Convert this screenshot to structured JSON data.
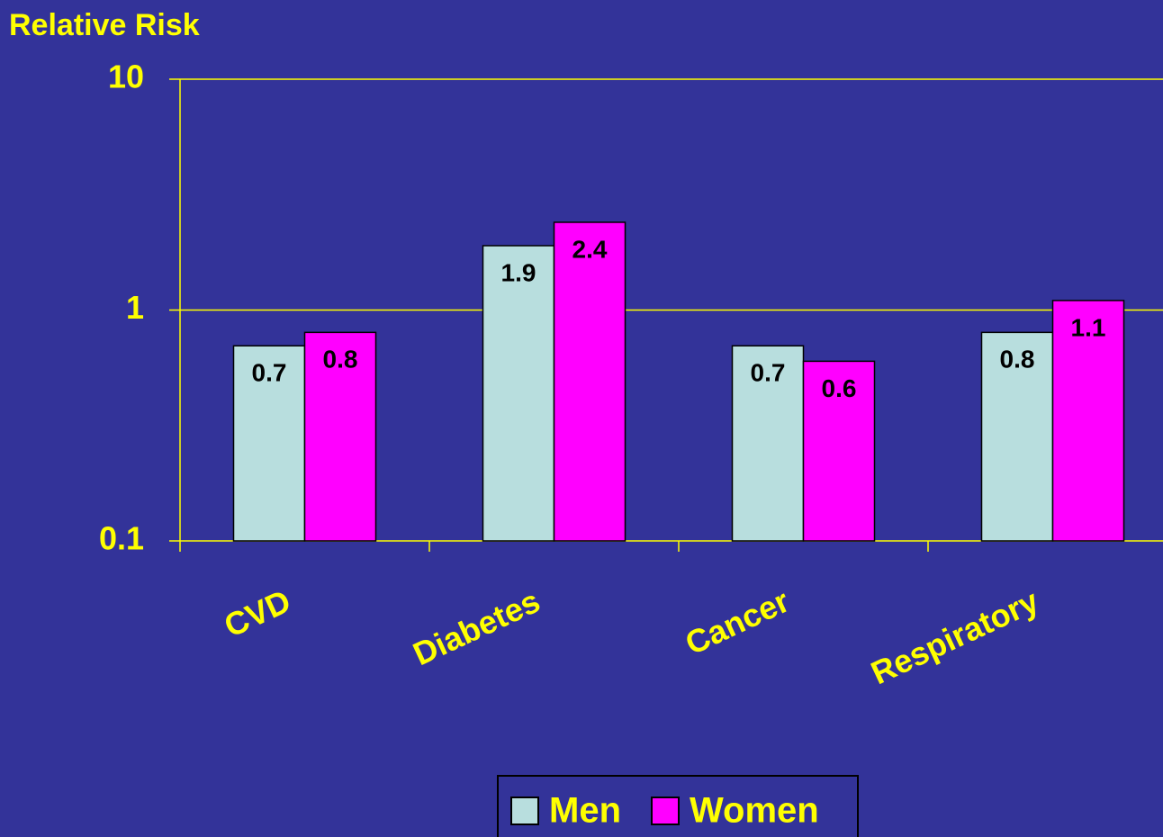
{
  "chart_data": {
    "type": "bar",
    "y_label": "Relative Risk",
    "categories": [
      "CVD",
      "Diabetes",
      "Cancer",
      "Respiratory"
    ],
    "series": [
      {
        "name": "Men",
        "color": "#b8dede",
        "values": [
          0.7,
          1.9,
          0.7,
          0.8
        ]
      },
      {
        "name": "Women",
        "color": "#ff00ff",
        "values": [
          0.8,
          2.4,
          0.6,
          1.1
        ]
      }
    ],
    "log_scale": true,
    "ylim": [
      0.1,
      10
    ],
    "yticks": [
      0.1,
      1,
      10
    ],
    "grid": true
  }
}
